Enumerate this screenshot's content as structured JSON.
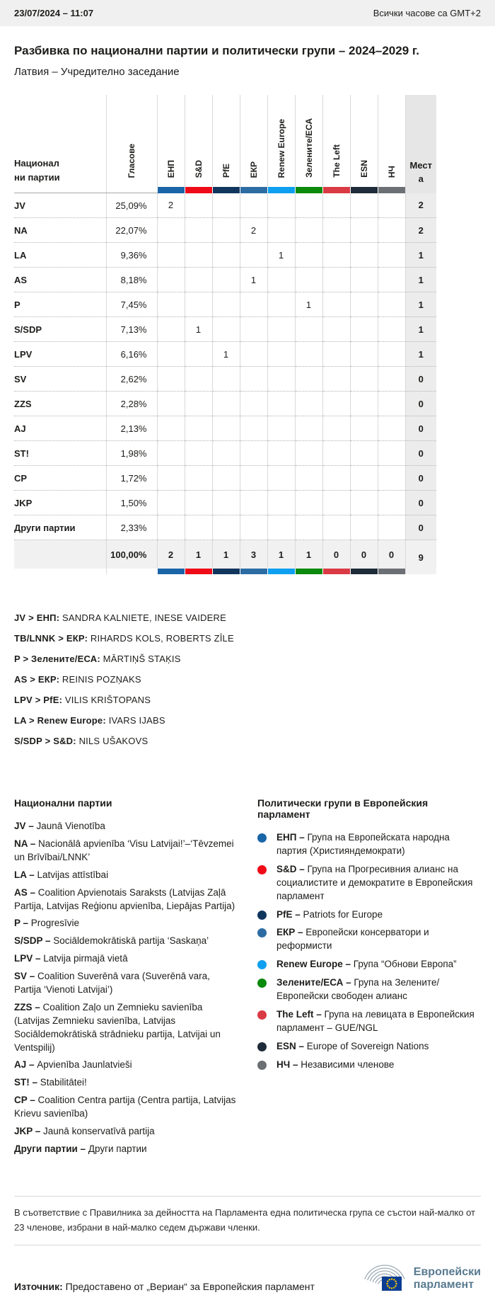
{
  "top_bar": {
    "datetime": "23/07/2024 – 11:07",
    "timezone_note": "Всички часове са GMT+2"
  },
  "title": "Разбивка по национални партии и политически групи – 2024–2029 г.",
  "subtitle": "Латвия – Учредително заседание",
  "table": {
    "row_header_label": "Национални партии",
    "votes_label": "Гласове",
    "seats_label": "Места",
    "groups": [
      {
        "code": "ЕНП",
        "color": "#1a65a8"
      },
      {
        "code": "S&D",
        "color": "#ee0b17"
      },
      {
        "code": "PfE",
        "color": "#11365e"
      },
      {
        "code": "ЕКР",
        "color": "#2d6ca3"
      },
      {
        "code": "Renew Europe",
        "color": "#0f9ff0"
      },
      {
        "code": "Зелените/ЕСА",
        "color": "#0b8a0b"
      },
      {
        "code": "The Left",
        "color": "#da3a44"
      },
      {
        "code": "ESN",
        "color": "#1e2b38"
      },
      {
        "code": "НЧ",
        "color": "#6c7075"
      }
    ],
    "rows": [
      {
        "party": "JV",
        "votes": "25,09%",
        "by_group": [
          "2",
          "",
          "",
          "",
          "",
          "",
          "",
          "",
          ""
        ],
        "seats": "2"
      },
      {
        "party": "NA",
        "votes": "22,07%",
        "by_group": [
          "",
          "",
          "",
          "2",
          "",
          "",
          "",
          "",
          ""
        ],
        "seats": "2"
      },
      {
        "party": "LA",
        "votes": "9,36%",
        "by_group": [
          "",
          "",
          "",
          "",
          "1",
          "",
          "",
          "",
          ""
        ],
        "seats": "1"
      },
      {
        "party": "AS",
        "votes": "8,18%",
        "by_group": [
          "",
          "",
          "",
          "1",
          "",
          "",
          "",
          "",
          ""
        ],
        "seats": "1"
      },
      {
        "party": "P",
        "votes": "7,45%",
        "by_group": [
          "",
          "",
          "",
          "",
          "",
          "1",
          "",
          "",
          ""
        ],
        "seats": "1"
      },
      {
        "party": "S/SDP",
        "votes": "7,13%",
        "by_group": [
          "",
          "1",
          "",
          "",
          "",
          "",
          "",
          "",
          ""
        ],
        "seats": "1"
      },
      {
        "party": "LPV",
        "votes": "6,16%",
        "by_group": [
          "",
          "",
          "1",
          "",
          "",
          "",
          "",
          "",
          ""
        ],
        "seats": "1"
      },
      {
        "party": "SV",
        "votes": "2,62%",
        "by_group": [
          "",
          "",
          "",
          "",
          "",
          "",
          "",
          "",
          ""
        ],
        "seats": "0"
      },
      {
        "party": "ZZS",
        "votes": "2,28%",
        "by_group": [
          "",
          "",
          "",
          "",
          "",
          "",
          "",
          "",
          ""
        ],
        "seats": "0"
      },
      {
        "party": "AJ",
        "votes": "2,13%",
        "by_group": [
          "",
          "",
          "",
          "",
          "",
          "",
          "",
          "",
          ""
        ],
        "seats": "0"
      },
      {
        "party": "ST!",
        "votes": "1,98%",
        "by_group": [
          "",
          "",
          "",
          "",
          "",
          "",
          "",
          "",
          ""
        ],
        "seats": "0"
      },
      {
        "party": "CP",
        "votes": "1,72%",
        "by_group": [
          "",
          "",
          "",
          "",
          "",
          "",
          "",
          "",
          ""
        ],
        "seats": "0"
      },
      {
        "party": "JKP",
        "votes": "1,50%",
        "by_group": [
          "",
          "",
          "",
          "",
          "",
          "",
          "",
          "",
          ""
        ],
        "seats": "0"
      },
      {
        "party": "Други партии",
        "votes": "2,33%",
        "by_group": [
          "",
          "",
          "",
          "",
          "",
          "",
          "",
          "",
          ""
        ],
        "seats": "0"
      }
    ],
    "total": {
      "votes": "100,00%",
      "by_group": [
        "2",
        "1",
        "1",
        "3",
        "1",
        "1",
        "0",
        "0",
        "0"
      ],
      "seats": "9"
    }
  },
  "elected": [
    {
      "label": "JV > ЕНП:",
      "names": "SANDRA KALNIETE, INESE VAIDERE"
    },
    {
      "label": "TB/LNNK > ЕКР:",
      "names": "RIHARDS KOLS, ROBERTS ZĪLE"
    },
    {
      "label": "P > Зелените/ЕСА:",
      "names": "MĀRTIŅŠ STAĶIS"
    },
    {
      "label": "AS > ЕКР:",
      "names": "REINIS POZŅAKS"
    },
    {
      "label": "LPV > PfE:",
      "names": "VILIS KRIŠTOPANS"
    },
    {
      "label": "LA > Renew Europe:",
      "names": "IVARS IJABS"
    },
    {
      "label": "S/SDP > S&D:",
      "names": "NILS UŠAKOVS"
    }
  ],
  "national_parties_legend": {
    "heading": "Национални партии",
    "items": [
      {
        "abbr": "JV",
        "name": "Jaunā Vienotība"
      },
      {
        "abbr": "NA",
        "name": "Nacionālā apvienība ‘Visu Latvijai!’–‘Tēvzemei un Brīvībai/LNNK’"
      },
      {
        "abbr": "LA",
        "name": "Latvijas attīstībai"
      },
      {
        "abbr": "AS",
        "name": "Coalition Apvienotais Saraksts (Latvijas Zaļā Partija, Latvijas Reģionu apvienība, Liepājas Partija)"
      },
      {
        "abbr": "P",
        "name": "Progresīvie"
      },
      {
        "abbr": "S/SDP",
        "name": "Sociāldemokrātiskā partija ‘Saskaņa’"
      },
      {
        "abbr": "LPV",
        "name": "Latvija pirmajā vietā"
      },
      {
        "abbr": "SV",
        "name": "Coalition Suverēnā vara (Suverēnā vara, Partija ‘Vienoti Latvijai’)"
      },
      {
        "abbr": "ZZS",
        "name": "Coalition Zaļo un Zemnieku savienība (Latvijas Zemnieku savienība, Latvijas Sociāldemokrātiskā strādnieku partija, Latvijai un Ventspilij)"
      },
      {
        "abbr": "AJ",
        "name": "Apvienība Jaunlatvieši"
      },
      {
        "abbr": "ST!",
        "name": "Stabilitātei!"
      },
      {
        "abbr": "CP",
        "name": "Coalition Centra partija (Centra partija, Latvijas Krievu savienība)"
      },
      {
        "abbr": "JKP",
        "name": "Jaunā konservatīvā partija"
      },
      {
        "abbr": "Други партии",
        "name": "Други партии"
      }
    ]
  },
  "groups_legend": {
    "heading": "Политически групи в Европейския парламент",
    "items": [
      {
        "abbr": "ЕНП",
        "desc": "Група на Европейската народна партия (Християндемократи)",
        "color": "#1a65a8"
      },
      {
        "abbr": "S&D",
        "desc": "Група на Прогресивния алианс на социалистите и демократите в Европейския парламент",
        "color": "#ee0b17"
      },
      {
        "abbr": "PfE",
        "desc": "Patriots for Europe",
        "color": "#11365e"
      },
      {
        "abbr": "ЕКР",
        "desc": "Европейски консерватори и реформисти",
        "color": "#2d6ca3"
      },
      {
        "abbr": "Renew Europe",
        "desc": "Група “Обнови Европа”",
        "color": "#0f9ff0"
      },
      {
        "abbr": "Зелените/ЕСА",
        "desc": "Група на Зелените/Европейски свободен алианс",
        "color": "#0b8a0b"
      },
      {
        "abbr": "The Left",
        "desc": "Група на левицата в Европейския парламент – GUE/NGL",
        "color": "#da3a44"
      },
      {
        "abbr": "ESN",
        "desc": "Europe of Sovereign Nations",
        "color": "#1e2b38"
      },
      {
        "abbr": "НЧ",
        "desc": "Независими членове",
        "color": "#6c7075"
      }
    ]
  },
  "note": "В съответствие с Правилника за дейността на Парламента една политическа група се състои най-малко от 23 членове, избрани в най-малко седем държави членки.",
  "source": {
    "label": "Източник:",
    "text": "Предоставено от „Вериан“ за Европейския парламент"
  },
  "logo": {
    "line1": "Европейски",
    "line2": "парламент"
  }
}
